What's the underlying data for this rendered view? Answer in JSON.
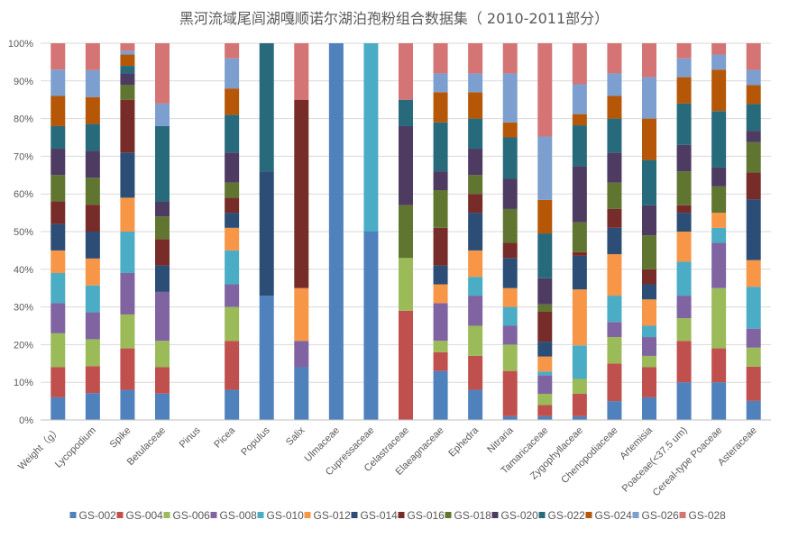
{
  "chart_data": {
    "type": "bar",
    "stacked": "percent",
    "title": "黑河流域尾闾湖嘎顺诺尔湖泊孢粉组合数据集（ 2010-2011部分）",
    "xlabel": "",
    "ylabel": "",
    "ylim": [
      0,
      100
    ],
    "y_ticks": [
      "0%",
      "10%",
      "20%",
      "30%",
      "40%",
      "50%",
      "60%",
      "70%",
      "80%",
      "90%",
      "100%"
    ],
    "grid": true,
    "legend_position": "bottom",
    "categories": [
      "Weight（g）",
      "Lycopodium",
      "Spike",
      "Betulaceae",
      "Pinus",
      "Picea",
      "Populus",
      "Salix",
      "Ulmaceae",
      "Cupressaceae",
      "Celastraceae",
      "Elaeagnaceae",
      "Ephedra",
      "Nitraria",
      "Tamaricaceae",
      "Zygophyllaceae",
      "Chenopodiaceae",
      "Artemisia",
      "Poaceae(<37.5 um)",
      "Cereal-type Poaceae",
      "Asteraceae"
    ],
    "series": [
      {
        "name": "GS-002",
        "color": "#4F81BD",
        "values": [
          6,
          7,
          8,
          7,
          0,
          8,
          33,
          14,
          100,
          50,
          0,
          13,
          8,
          1,
          1,
          1,
          5,
          6,
          10,
          10,
          5
        ]
      },
      {
        "name": "GS-004",
        "color": "#C0504D",
        "values": [
          8,
          7,
          11,
          7,
          0,
          13,
          0,
          0,
          0,
          0,
          29,
          5,
          9,
          12,
          3,
          6,
          10,
          8,
          11,
          9,
          9
        ]
      },
      {
        "name": "GS-006",
        "color": "#9BBB59",
        "values": [
          9,
          7,
          9,
          7,
          0,
          9,
          0,
          0,
          0,
          0,
          14,
          3,
          8,
          7,
          3,
          4,
          7,
          3,
          6,
          16,
          5
        ]
      },
      {
        "name": "GS-008",
        "color": "#8064A2",
        "values": [
          8,
          7,
          11,
          13,
          0,
          6,
          0,
          7,
          0,
          0,
          0,
          10,
          8,
          5,
          5,
          0,
          4,
          5,
          6,
          12,
          5
        ]
      },
      {
        "name": "GS-010",
        "color": "#4BACC6",
        "values": [
          8,
          7,
          11,
          0,
          0,
          9,
          0,
          0,
          0,
          50,
          0,
          0,
          5,
          5,
          1,
          9,
          7,
          3,
          9,
          4,
          11
        ]
      },
      {
        "name": "GS-012",
        "color": "#F79646",
        "values": [
          6,
          7,
          9,
          0,
          0,
          6,
          0,
          14,
          0,
          0,
          0,
          5,
          7,
          5,
          4,
          15,
          11,
          7,
          8,
          4,
          7
        ]
      },
      {
        "name": "GS-014",
        "color": "#2C4D75",
        "values": [
          7,
          7,
          12,
          7,
          0,
          4,
          33,
          0,
          0,
          0,
          0,
          5,
          10,
          8,
          4,
          9,
          7,
          4,
          5,
          0,
          16
        ]
      },
      {
        "name": "GS-016",
        "color": "#772C2A",
        "values": [
          6,
          7,
          14,
          7,
          0,
          4,
          0,
          50,
          0,
          0,
          0,
          10,
          5,
          4,
          8,
          1,
          5,
          4,
          2,
          0,
          7
        ]
      },
      {
        "name": "GS-018",
        "color": "#5F7530",
        "values": [
          7,
          7,
          4,
          6,
          0,
          4,
          0,
          0,
          0,
          0,
          14,
          10,
          5,
          9,
          2,
          8,
          7,
          9,
          9,
          7,
          8
        ]
      },
      {
        "name": "GS-020",
        "color": "#4D3B62",
        "values": [
          7,
          7,
          3,
          4,
          0,
          8,
          0,
          0,
          0,
          0,
          21,
          5,
          7,
          8,
          7,
          15,
          8,
          8,
          7,
          5,
          3
        ]
      },
      {
        "name": "GS-022",
        "color": "#276A7C",
        "values": [
          6,
          7,
          2,
          20,
          0,
          10,
          34,
          0,
          0,
          0,
          7,
          13,
          8,
          11,
          12,
          11,
          9,
          12,
          11,
          15,
          7
        ]
      },
      {
        "name": "GS-024",
        "color": "#B65708",
        "values": [
          8,
          7,
          3,
          0,
          0,
          7,
          0,
          0,
          0,
          0,
          0,
          8,
          7,
          4,
          9,
          3,
          6,
          11,
          7,
          11,
          5
        ]
      },
      {
        "name": "GS-026",
        "color": "#7C9FCF",
        "values": [
          7,
          7,
          1,
          6,
          0,
          8,
          0,
          0,
          0,
          0,
          0,
          5,
          5,
          13,
          17,
          8,
          6,
          11,
          5,
          4,
          4
        ]
      },
      {
        "name": "GS-028",
        "color": "#D47474",
        "values": [
          7,
          7,
          2,
          16,
          0,
          4,
          0,
          15,
          0,
          0,
          15,
          8,
          8,
          8,
          25,
          11,
          8,
          9,
          4,
          3,
          7
        ]
      }
    ]
  }
}
